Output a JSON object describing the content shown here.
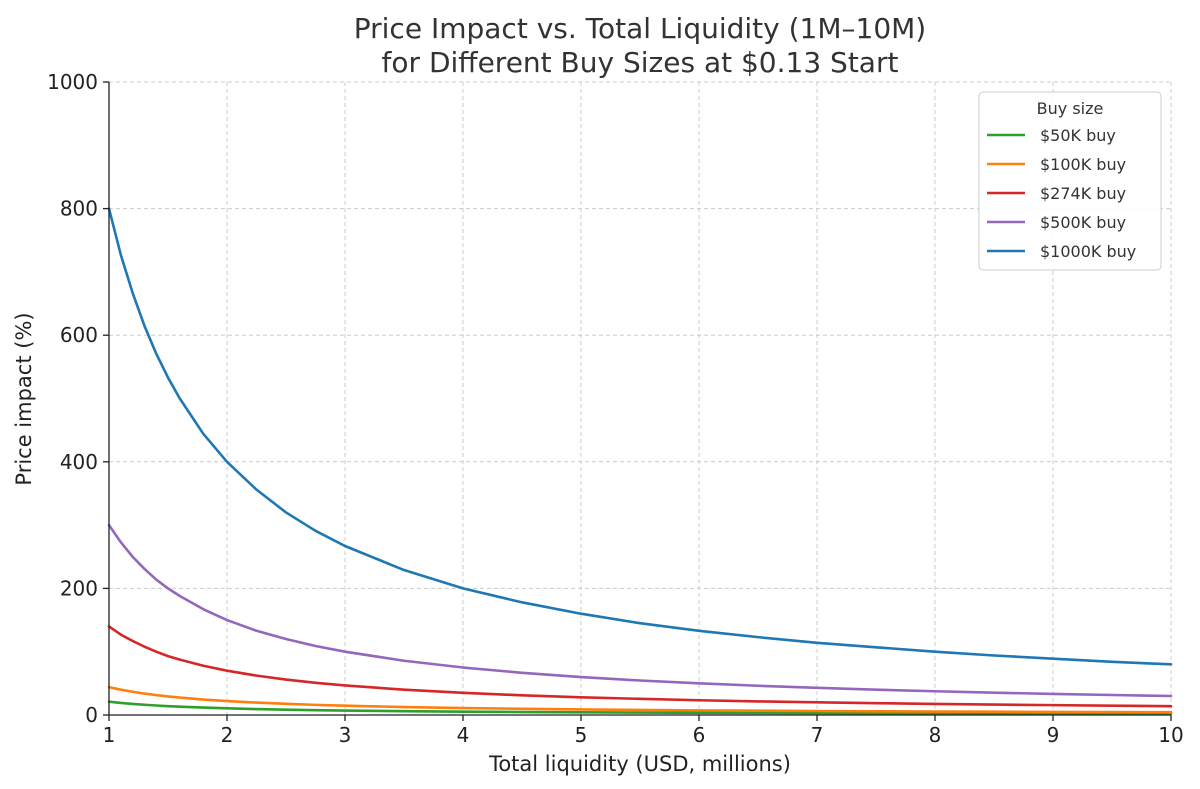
{
  "chart_data": {
    "type": "line",
    "title": "Price Impact vs. Total Liquidity (1M–10M)",
    "subtitle": "for Different Buy Sizes at $0.13 Start",
    "xlabel": "Total liquidity (USD, millions)",
    "ylabel": "Price impact (%)",
    "xlim": [
      1,
      10
    ],
    "ylim": [
      0,
      1000
    ],
    "xticks": [
      1,
      2,
      3,
      4,
      5,
      6,
      7,
      8,
      9,
      10
    ],
    "yticks": [
      0,
      200,
      400,
      600,
      800,
      1000
    ],
    "grid": true,
    "legend": {
      "title": "Buy size",
      "position": "top-right"
    },
    "x": [
      1,
      1.1,
      1.2,
      1.3,
      1.4,
      1.5,
      1.6,
      1.8,
      2,
      2.25,
      2.5,
      2.75,
      3,
      3.5,
      4,
      4.5,
      5,
      5.5,
      6,
      6.5,
      7,
      7.5,
      8,
      8.5,
      9,
      9.5,
      10
    ],
    "series": [
      {
        "name": "$50K buy",
        "color": "#2ca02c",
        "values": [
          21,
          19.1,
          17.5,
          16.2,
          15,
          14,
          13.1,
          11.7,
          10.5,
          9.3,
          8.4,
          7.6,
          7,
          6,
          5.3,
          4.7,
          4.2,
          3.8,
          3.5,
          3.2,
          3,
          2.8,
          2.6,
          2.5,
          2.3,
          2.2,
          2.1
        ]
      },
      {
        "name": "$100K buy",
        "color": "#ff7f0e",
        "values": [
          44,
          40,
          36.7,
          33.8,
          31.4,
          29.3,
          27.5,
          24.4,
          22,
          19.6,
          17.6,
          16,
          14.7,
          12.6,
          11,
          9.8,
          8.8,
          8,
          7.3,
          6.8,
          6.3,
          5.9,
          5.5,
          5.2,
          4.9,
          4.6,
          4.4
        ]
      },
      {
        "name": "$274K buy",
        "color": "#d62728",
        "values": [
          140,
          127,
          117,
          108,
          100,
          93,
          87.5,
          77.8,
          70,
          62.2,
          56,
          50.9,
          46.7,
          40,
          35,
          31.1,
          28,
          25.5,
          23.3,
          21.5,
          20,
          18.7,
          17.5,
          16.5,
          15.6,
          14.7,
          14
        ]
      },
      {
        "name": "$500K buy",
        "color": "#9467bd",
        "values": [
          300,
          273,
          250,
          231,
          214,
          200,
          188,
          167,
          150,
          133,
          120,
          109,
          100,
          85.7,
          75,
          66.7,
          60,
          54.5,
          50,
          46.2,
          42.9,
          40,
          37.5,
          35.3,
          33.3,
          31.6,
          30
        ]
      },
      {
        "name": "$1000K buy",
        "color": "#1f77b4",
        "values": [
          800,
          727,
          667,
          615,
          571,
          533,
          500,
          444,
          400,
          356,
          320,
          291,
          267,
          229,
          200,
          178,
          160,
          145,
          133,
          123,
          114,
          107,
          100,
          94,
          89,
          84,
          80
        ]
      }
    ]
  }
}
